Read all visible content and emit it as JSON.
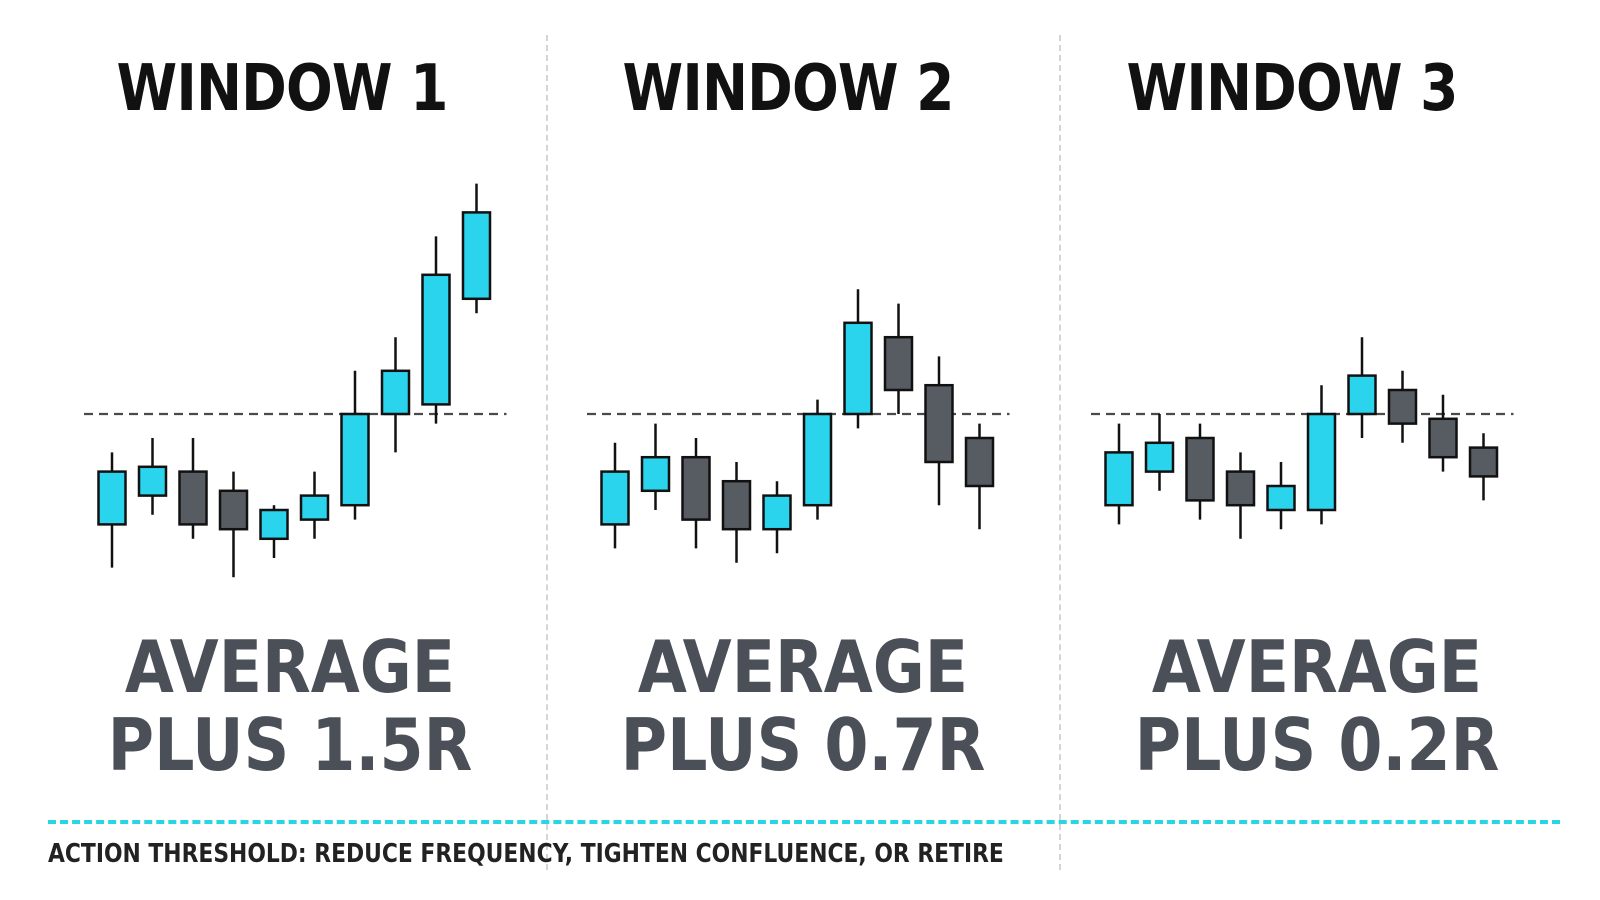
{
  "colors": {
    "bullish": "#29d4ec",
    "bearish": "#575c63",
    "outline": "#111111",
    "result_text": "#4b5058",
    "threshold": "#27d5e5"
  },
  "panels": [
    {
      "title": "WINDOW 1",
      "result_line1": "AVERAGE",
      "result_line2": "PLUS 1.5R"
    },
    {
      "title": "WINDOW 2",
      "result_line1": "AVERAGE",
      "result_line2": "PLUS 0.7R"
    },
    {
      "title": "WINDOW 3",
      "result_line1": "AVERAGE",
      "result_line2": "PLUS 0.2R"
    }
  ],
  "footer": {
    "threshold_text": "ACTION THRESHOLD: REDUCE FREQUENCY, TIGHTEN CONFLUENCE, OR RETIRE"
  },
  "chart_data": [
    {
      "type": "candlestick",
      "title": "WINDOW 1",
      "reference_level": 0,
      "ylim": [
        -3.1,
        4.6
      ],
      "candles": [
        {
          "open": -2.3,
          "high": -0.8,
          "low": -3.2,
          "close": -1.2,
          "direction": "up"
        },
        {
          "open": -1.7,
          "high": -0.5,
          "low": -2.1,
          "close": -1.1,
          "direction": "up"
        },
        {
          "open": -1.2,
          "high": -0.5,
          "low": -2.6,
          "close": -2.3,
          "direction": "down"
        },
        {
          "open": -1.6,
          "high": -1.2,
          "low": -3.4,
          "close": -2.4,
          "direction": "down"
        },
        {
          "open": -2.6,
          "high": -1.9,
          "low": -3.0,
          "close": -2.0,
          "direction": "up"
        },
        {
          "open": -2.2,
          "high": -1.2,
          "low": -2.6,
          "close": -1.7,
          "direction": "up"
        },
        {
          "open": -1.9,
          "high": 0.9,
          "low": -2.2,
          "close": 0.0,
          "direction": "up"
        },
        {
          "open": 0.0,
          "high": 1.6,
          "low": -0.8,
          "close": 0.9,
          "direction": "up"
        },
        {
          "open": 0.2,
          "high": 3.7,
          "low": -0.2,
          "close": 2.9,
          "direction": "up"
        },
        {
          "open": 2.4,
          "high": 4.8,
          "low": 2.1,
          "close": 4.2,
          "direction": "up"
        }
      ]
    },
    {
      "type": "candlestick",
      "title": "WINDOW 2",
      "reference_level": 0,
      "ylim": [
        -3.1,
        4.6
      ],
      "candles": [
        {
          "open": -2.3,
          "high": -0.6,
          "low": -2.8,
          "close": -1.2,
          "direction": "up"
        },
        {
          "open": -1.6,
          "high": -0.2,
          "low": -2.0,
          "close": -0.9,
          "direction": "up"
        },
        {
          "open": -0.9,
          "high": -0.5,
          "low": -2.8,
          "close": -2.2,
          "direction": "down"
        },
        {
          "open": -1.4,
          "high": -1.0,
          "low": -3.1,
          "close": -2.4,
          "direction": "down"
        },
        {
          "open": -2.4,
          "high": -1.4,
          "low": -2.9,
          "close": -1.7,
          "direction": "up"
        },
        {
          "open": -1.9,
          "high": 0.3,
          "low": -2.2,
          "close": 0.0,
          "direction": "up"
        },
        {
          "open": 0.0,
          "high": 2.6,
          "low": -0.3,
          "close": 1.9,
          "direction": "up"
        },
        {
          "open": 1.6,
          "high": 2.3,
          "low": 0.0,
          "close": 0.5,
          "direction": "down"
        },
        {
          "open": 0.6,
          "high": 1.2,
          "low": -1.9,
          "close": -1.0,
          "direction": "down"
        },
        {
          "open": -0.5,
          "high": -0.2,
          "low": -2.4,
          "close": -1.5,
          "direction": "down"
        }
      ]
    },
    {
      "type": "candlestick",
      "title": "WINDOW 3",
      "reference_level": 0,
      "ylim": [
        -3.1,
        4.6
      ],
      "candles": [
        {
          "open": -1.9,
          "high": -0.2,
          "low": -2.3,
          "close": -0.8,
          "direction": "up"
        },
        {
          "open": -1.2,
          "high": 0.0,
          "low": -1.6,
          "close": -0.6,
          "direction": "up"
        },
        {
          "open": -0.5,
          "high": -0.2,
          "low": -2.2,
          "close": -1.8,
          "direction": "down"
        },
        {
          "open": -1.2,
          "high": -0.8,
          "low": -2.6,
          "close": -1.9,
          "direction": "down"
        },
        {
          "open": -2.0,
          "high": -1.0,
          "low": -2.4,
          "close": -1.5,
          "direction": "up"
        },
        {
          "open": -2.0,
          "high": 0.6,
          "low": -2.3,
          "close": 0.0,
          "direction": "up"
        },
        {
          "open": 0.0,
          "high": 1.6,
          "low": -0.5,
          "close": 0.8,
          "direction": "up"
        },
        {
          "open": 0.5,
          "high": 0.9,
          "low": -0.6,
          "close": -0.2,
          "direction": "down"
        },
        {
          "open": -0.1,
          "high": 0.4,
          "low": -1.2,
          "close": -0.9,
          "direction": "down"
        },
        {
          "open": -0.7,
          "high": -0.4,
          "low": -1.8,
          "close": -1.3,
          "direction": "down"
        }
      ]
    }
  ]
}
